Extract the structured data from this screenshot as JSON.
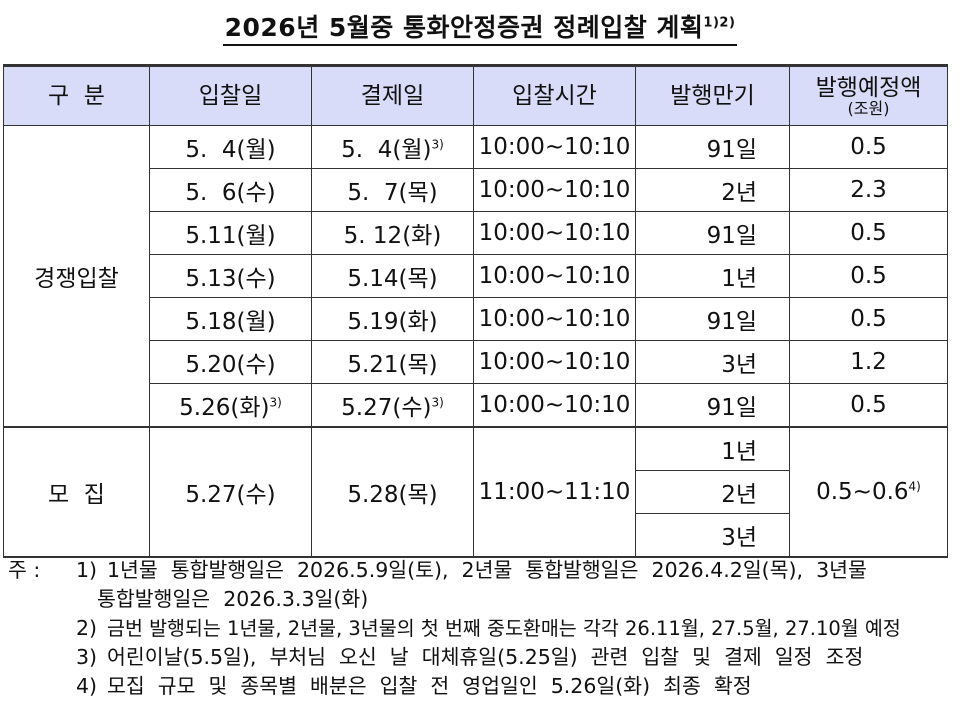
{
  "title": {
    "text": "2026년 5월중 통화안정증권 정례입찰 계획",
    "sup": "1)2)"
  },
  "table": {
    "headers": [
      {
        "label": "구  분",
        "sub": ""
      },
      {
        "label": "입찰일",
        "sub": ""
      },
      {
        "label": "결제일",
        "sub": ""
      },
      {
        "label": "입찰시간",
        "sub": ""
      },
      {
        "label": "발행만기",
        "sub": ""
      },
      {
        "label": "발행예정액",
        "sub": "(조원)"
      }
    ],
    "competitive": {
      "group": "경쟁입찰",
      "rows": [
        {
          "bid": "5.  4(월)",
          "bid_sup": "",
          "settle": "5.  4(월)",
          "settle_sup": "3)",
          "time": "10:00~10:10",
          "maturity": "91일",
          "amount": "0.5"
        },
        {
          "bid": "5.  6(수)",
          "bid_sup": "",
          "settle": "5.  7(목)",
          "settle_sup": "",
          "time": "10:00~10:10",
          "maturity": "2년",
          "amount": "2.3"
        },
        {
          "bid": "5.11(월)",
          "bid_sup": "",
          "settle": "5. 12(화)",
          "settle_sup": "",
          "time": "10:00~10:10",
          "maturity": "91일",
          "amount": "0.5"
        },
        {
          "bid": "5.13(수)",
          "bid_sup": "",
          "settle": "5.14(목)",
          "settle_sup": "",
          "time": "10:00~10:10",
          "maturity": "1년",
          "amount": "0.5"
        },
        {
          "bid": "5.18(월)",
          "bid_sup": "",
          "settle": "5.19(화)",
          "settle_sup": "",
          "time": "10:00~10:10",
          "maturity": "91일",
          "amount": "0.5"
        },
        {
          "bid": "5.20(수)",
          "bid_sup": "",
          "settle": "5.21(목)",
          "settle_sup": "",
          "time": "10:00~10:10",
          "maturity": "3년",
          "amount": "1.2"
        },
        {
          "bid": "5.26(화)",
          "bid_sup": "3)",
          "settle": "5.27(수)",
          "settle_sup": "3)",
          "time": "10:00~10:10",
          "maturity": "91일",
          "amount": "0.5"
        }
      ]
    },
    "offering": {
      "group": "모  집",
      "bid": "5.27(수)",
      "settle": "5.28(목)",
      "time": "11:00~11:10",
      "maturities": [
        "1년",
        "2년",
        "3년"
      ],
      "amount": "0.5~0.6",
      "amount_sup": "4)"
    }
  },
  "notes": {
    "lead": "주 :",
    "items": [
      {
        "num": "1)",
        "lines": [
          "1년물  통합발행일은  2026.5.9일(토),  2년물  통합발행일은  2026.4.2일(목),  3년물",
          "통합발행일은  2026.3.3일(화)"
        ]
      },
      {
        "num": "2)",
        "lines": [
          "금번 발행되는 1년물, 2년물, 3년물의 첫 번째 중도환매는 각각 26.11월, 27.5월, 27.10월 예정"
        ]
      },
      {
        "num": "3)",
        "lines": [
          "어린이날(5.5일),  부처님  오신  날  대체휴일(5.25일)  관련  입찰  및  결제  일정  조정"
        ]
      },
      {
        "num": "4)",
        "lines": [
          "모집  규모  및  종목별  배분은  입찰  전  영업일인  5.26일(화)  최종  확정"
        ]
      }
    ]
  }
}
